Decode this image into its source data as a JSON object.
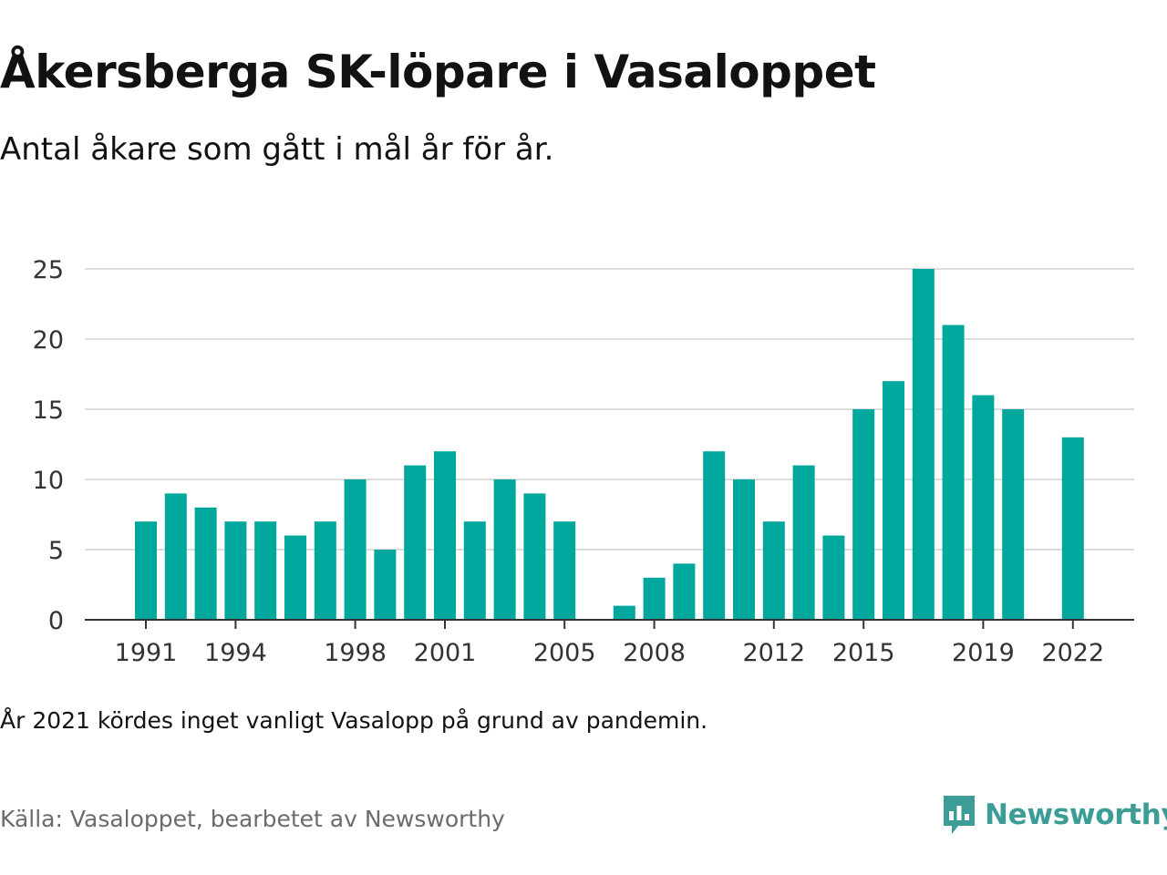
{
  "title": "Åkersberga SK-löpare i Vasaloppet",
  "subtitle": "Antal åkare som gått i mål år för år.",
  "note": "År 2021 kördes inget vanligt Vasalopp på grund av pandemin.",
  "source": "Källa: Vasaloppet, bearbetet av Newsworthy",
  "brand": {
    "name": "Newsworthy",
    "icon": "newsworthy-logo-icon"
  },
  "colors": {
    "bar": "#00a79d",
    "grid": "#dddddd",
    "axis": "#333333",
    "brand": "#3b9d95"
  },
  "chart_data": {
    "type": "bar",
    "x": [
      1991,
      1992,
      1993,
      1994,
      1995,
      1996,
      1997,
      1998,
      1999,
      2000,
      2001,
      2002,
      2003,
      2004,
      2005,
      2006,
      2007,
      2008,
      2009,
      2010,
      2011,
      2012,
      2013,
      2014,
      2015,
      2016,
      2017,
      2018,
      2019,
      2020,
      2021,
      2022
    ],
    "values": [
      7,
      9,
      8,
      7,
      7,
      6,
      7,
      10,
      5,
      11,
      12,
      7,
      10,
      9,
      7,
      0,
      1,
      3,
      4,
      12,
      10,
      7,
      11,
      6,
      15,
      17,
      25,
      21,
      16,
      15,
      null,
      13
    ],
    "x_tick_labels": [
      "1991",
      "1994",
      "1998",
      "2001",
      "2005",
      "2008",
      "2012",
      "2015",
      "2019",
      "2022"
    ],
    "y_ticks": [
      0,
      5,
      10,
      15,
      20,
      25
    ],
    "ylim": [
      0,
      25
    ],
    "grid": true,
    "xlabel": "",
    "ylabel": ""
  }
}
